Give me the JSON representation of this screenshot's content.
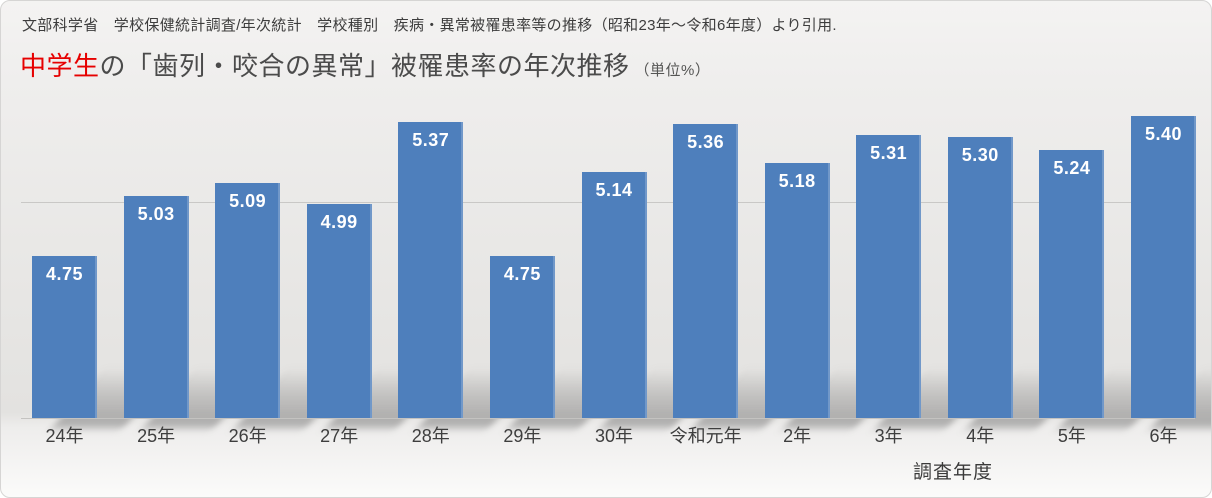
{
  "header": {
    "source_line": "文部科学省　学校保健統計調査/年次統計　学校種別　疾病・異常被罹患率等の推移（昭和23年～令和6年度）より引用.",
    "title_highlight": "中学生",
    "title_rest": "の「歯列・咬合の異常」被罹患率の年次推移",
    "title_unit": "（単位%）"
  },
  "chart_data": {
    "type": "bar",
    "title": "中学生の「歯列・咬合の異常」被罹患率の年次推移（単位%）",
    "categories": [
      "24年",
      "25年",
      "26年",
      "27年",
      "28年",
      "29年",
      "30年",
      "令和元年",
      "2年",
      "3年",
      "4年",
      "5年",
      "6年"
    ],
    "values": [
      4.75,
      5.03,
      5.09,
      4.99,
      5.37,
      4.75,
      5.14,
      5.36,
      5.18,
      5.31,
      5.3,
      5.24,
      5.4
    ],
    "value_decimals": 2,
    "xlabel": "調査年度",
    "ylabel": "",
    "unit": "%",
    "ylim": [
      4.0,
      5.56
    ],
    "gridlines": [
      5.0
    ],
    "grid_visible": true,
    "legend_position": "none",
    "bar_color": "#4e7fbc",
    "value_label_color": "#ffffff"
  },
  "colors": {
    "accent_red": "#e60000",
    "bar_blue": "#4e7fbc",
    "title_gray": "#4b4b4b",
    "background_top": "#f4f3f2",
    "background_bottom": "#fbfbfa"
  }
}
